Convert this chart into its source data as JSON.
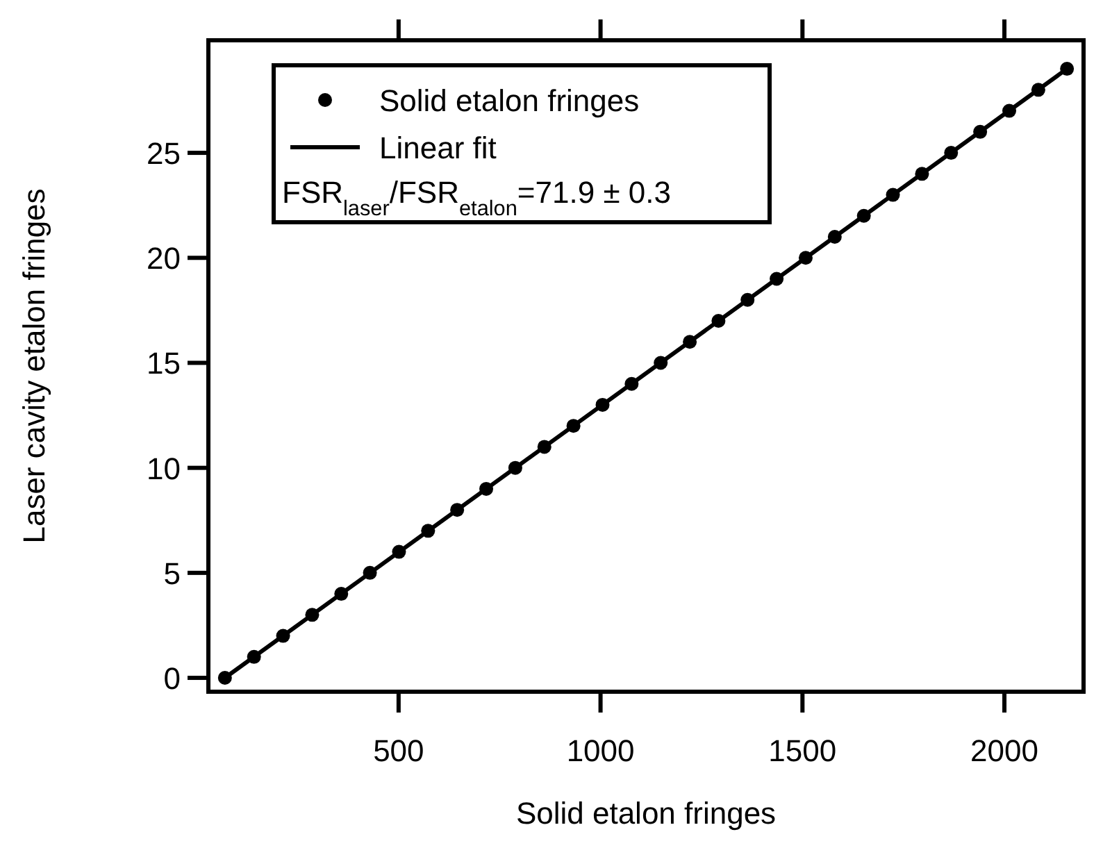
{
  "chart_data": {
    "type": "scatter",
    "xlabel": "Solid etalon fringes",
    "ylabel": "Laser cavity etalon fringes",
    "annotations": [
      "FSR$_{laser}$/FSR$_{etalon}$=71.9 ± 0.3"
    ],
    "xlim": [
      29,
      2196
    ],
    "xticks": [
      500,
      1000,
      1500,
      2000
    ],
    "ylim": [
      -0.66,
      30.36
    ],
    "yticks": [
      0,
      5,
      10,
      15,
      20,
      25
    ],
    "grid": false,
    "legend": "top left",
    "series": [
      {
        "name": "Solid etalon fringes",
        "marker": "circle",
        "color": "#000000",
        "x": [
          70,
          142,
          214,
          286,
          358,
          429,
          501,
          573,
          645,
          717,
          789,
          861,
          933,
          1005,
          1077,
          1149,
          1221,
          1292,
          1364,
          1436,
          1508,
          1580,
          1652,
          1724,
          1796,
          1868,
          1940,
          2012,
          2084,
          2155
        ],
        "values": [
          0,
          1,
          2,
          3,
          4,
          5,
          6,
          7,
          8,
          9,
          10,
          11,
          12,
          13,
          14,
          15,
          16,
          17,
          18,
          19,
          20,
          21,
          22,
          23,
          24,
          25,
          26,
          27,
          28,
          29
        ]
      },
      {
        "name": "Linear fit",
        "type": "line",
        "marker": "none",
        "color": "#000000",
        "line_style": "solid",
        "x": [
          70,
          2155
        ],
        "values": [
          0,
          29
        ]
      }
    ]
  }
}
